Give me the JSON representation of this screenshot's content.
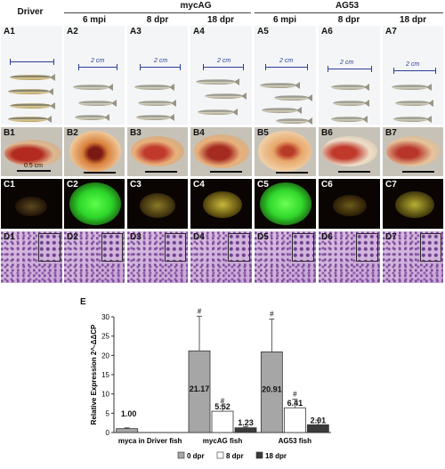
{
  "header": {
    "driver": "Driver",
    "group1": "mycAG",
    "group2": "AG53",
    "timepoints": [
      "6 mpi",
      "8 dpr",
      "18 dpr",
      "6 mpi",
      "8 dpr",
      "18 dpr"
    ]
  },
  "panels": {
    "A": [
      "A1",
      "A2",
      "A3",
      "A4",
      "A5",
      "A6",
      "A7"
    ],
    "B": [
      "B1",
      "B2",
      "B3",
      "B4",
      "B5",
      "B6",
      "B7"
    ],
    "C": [
      "C1",
      "C2",
      "C3",
      "C4",
      "C5",
      "C6",
      "C7"
    ],
    "D": [
      "D1",
      "D2",
      "D3",
      "D4",
      "D5",
      "D6",
      "D7"
    ]
  },
  "ruler_text": "2 cm",
  "scale_text": "0.5 cm",
  "panel_e_label": "E",
  "chart_data": {
    "type": "bar",
    "categories": [
      "myca in Driver fish",
      "mycAG fish",
      "AG53 fish"
    ],
    "ylabel": "Relative Expression 2^-ΔΔCP",
    "ylim": [
      0,
      30
    ],
    "yticks": [
      0,
      5,
      10,
      15,
      20,
      25,
      30
    ],
    "series": [
      {
        "name": "0 dpr",
        "color": "#a6a6a6",
        "values": [
          1.0,
          21.17,
          20.91
        ],
        "err": [
          0.2,
          9.0,
          8.5
        ],
        "labels": [
          "1.00",
          "21.17",
          "20.91"
        ],
        "marks": [
          "",
          "#",
          "#"
        ]
      },
      {
        "name": "8 dpr",
        "color": "#ffffff",
        "values": [
          null,
          5.52,
          6.41
        ],
        "err": [
          null,
          1.4,
          2.2
        ],
        "labels": [
          "",
          "5.52",
          "6.41"
        ],
        "marks": [
          "",
          "#",
          "#"
        ]
      },
      {
        "name": "18 dpr",
        "color": "#3a3a3a",
        "values": [
          null,
          1.23,
          2.01
        ],
        "err": [
          null,
          0.3,
          1.2
        ],
        "labels": [
          "",
          "1.23",
          "2.01"
        ],
        "marks": [
          "",
          "",
          ""
        ]
      }
    ],
    "legend_position": "bottom"
  }
}
